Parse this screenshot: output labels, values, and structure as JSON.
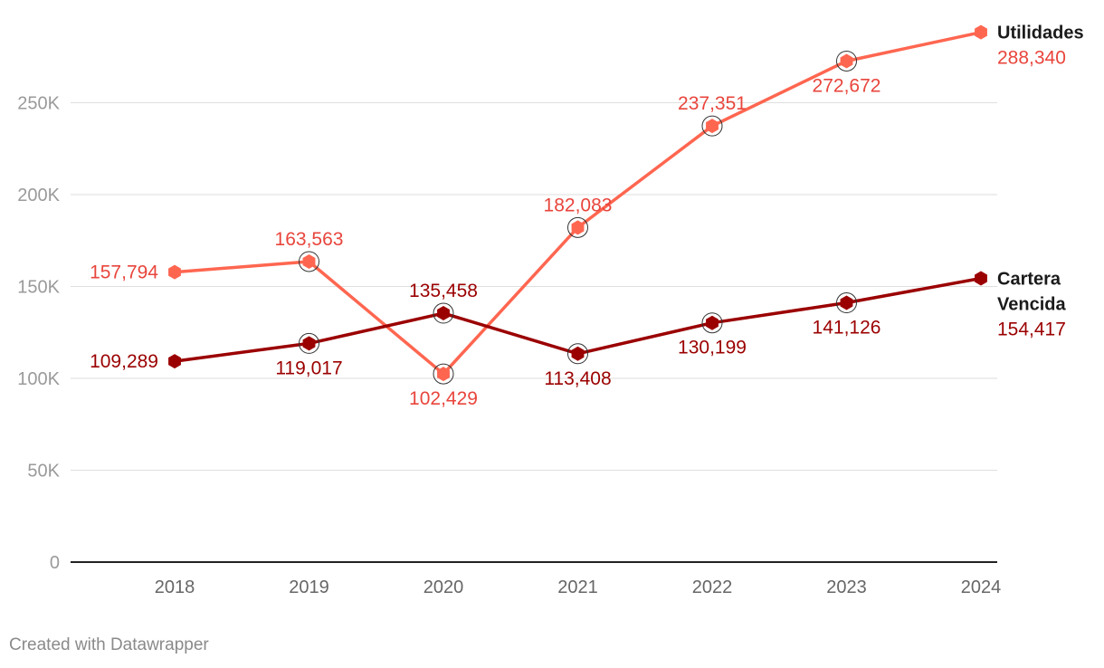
{
  "chart_data": {
    "type": "line",
    "x": [
      "2018",
      "2019",
      "2020",
      "2021",
      "2022",
      "2023",
      "2024"
    ],
    "ylim": [
      0,
      288340
    ],
    "yticks": [
      0,
      50000,
      100000,
      150000,
      200000,
      250000
    ],
    "ytick_labels": [
      "0",
      "50K",
      "100K",
      "150K",
      "200K",
      "250K"
    ],
    "grid": true,
    "series": [
      {
        "name": "Utilidades",
        "name_lines": [
          "Utilidades"
        ],
        "color": "#ff6650",
        "label_color": "#e8453c",
        "values": [
          157794,
          163563,
          102429,
          182083,
          237351,
          272672,
          288340
        ],
        "value_labels": [
          "157,794",
          "163,563",
          "102,429",
          "182,083",
          "237,351",
          "272,672",
          "288,340"
        ]
      },
      {
        "name": "Cartera Vencida",
        "name_lines": [
          "Cartera",
          "Vencida"
        ],
        "color": "#9b0000",
        "label_color": "#9b0000",
        "values": [
          109289,
          119017,
          135458,
          113408,
          130199,
          141126,
          154417
        ],
        "value_labels": [
          "109,289",
          "119,017",
          "135,458",
          "113,408",
          "130,199",
          "141,126",
          "154,417"
        ]
      }
    ]
  },
  "footer": {
    "credit": "Created with Datawrapper"
  }
}
